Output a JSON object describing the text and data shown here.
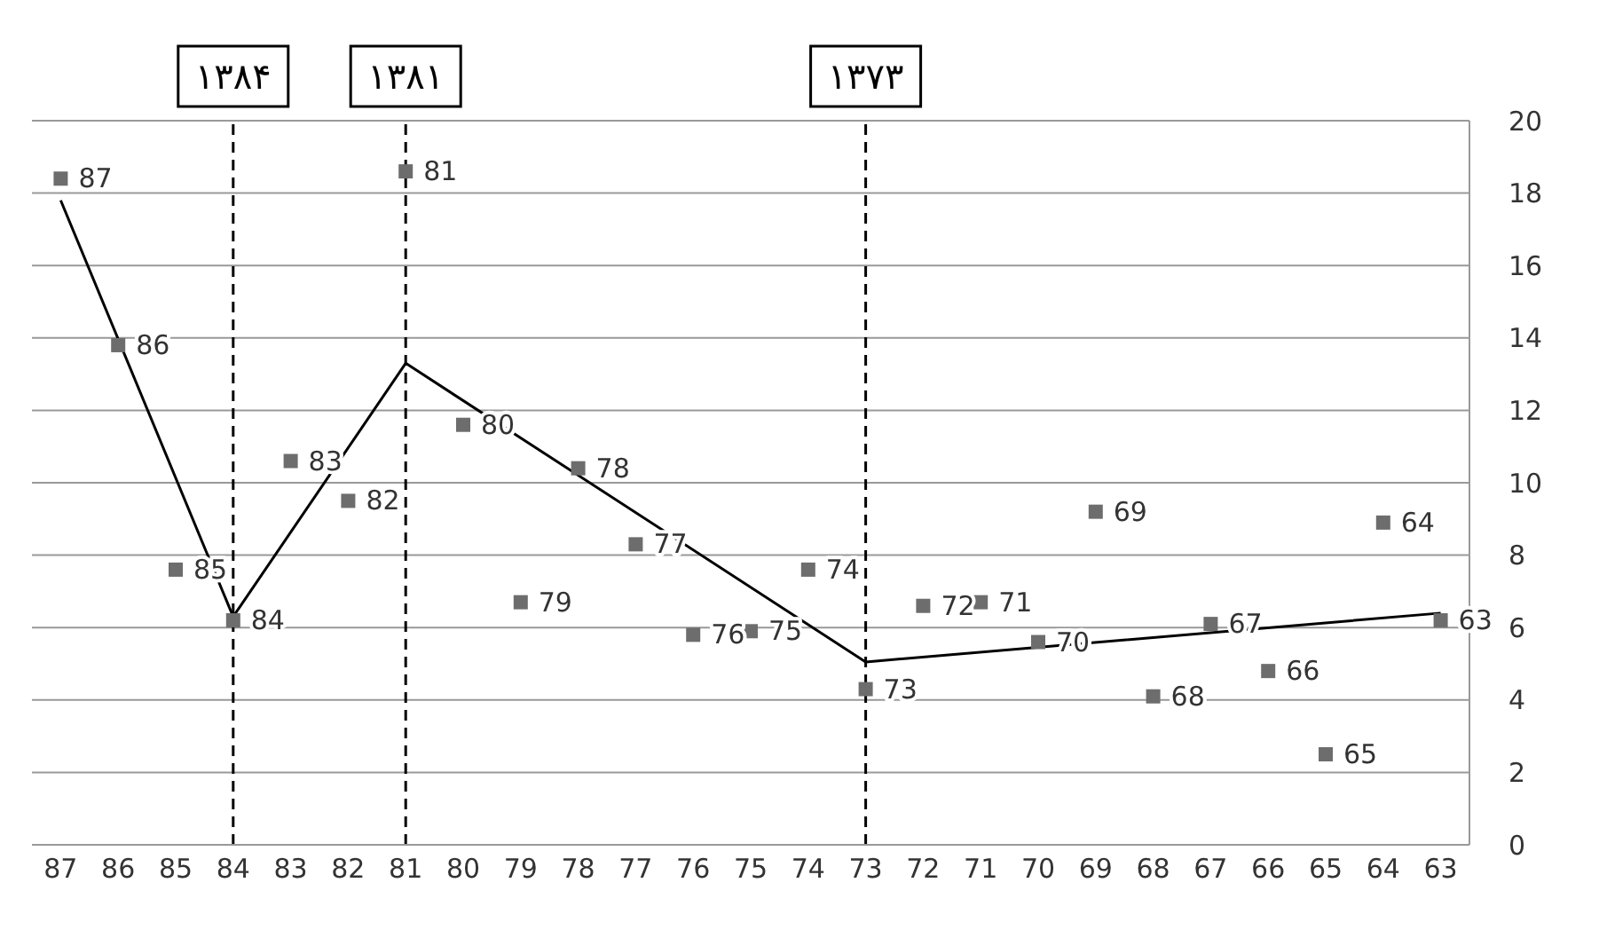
{
  "chart_data": {
    "type": "scatter",
    "categories": [
      "87",
      "86",
      "85",
      "84",
      "83",
      "82",
      "81",
      "80",
      "79",
      "78",
      "77",
      "76",
      "75",
      "74",
      "73",
      "72",
      "71",
      "70",
      "69",
      "68",
      "67",
      "66",
      "65",
      "64",
      "63"
    ],
    "series": [
      {
        "type": "scatter",
        "color": "#6d6d6d",
        "marker": "square",
        "x": [
          "87",
          "86",
          "85",
          "84",
          "83",
          "82",
          "81",
          "80",
          "79",
          "78",
          "77",
          "76",
          "75",
          "74",
          "73",
          "72",
          "71",
          "70",
          "69",
          "68",
          "67",
          "66",
          "65",
          "64",
          "63"
        ],
        "values": [
          18.4,
          13.8,
          7.6,
          6.2,
          10.6,
          9.5,
          18.6,
          11.6,
          6.7,
          10.4,
          8.3,
          5.8,
          5.9,
          7.6,
          4.3,
          6.6,
          6.7,
          5.6,
          9.2,
          4.1,
          6.1,
          4.8,
          2.5,
          8.9,
          6.2
        ]
      },
      {
        "type": "line",
        "color": "#000000",
        "marker": "none",
        "line_style": "solid",
        "x": [
          "87",
          "84",
          "81",
          "73",
          "63"
        ],
        "values": [
          17.8,
          6.3,
          13.3,
          5.05,
          6.4
        ]
      }
    ],
    "annotations": [
      {
        "text": "87",
        "x": "87",
        "y": 18.4
      },
      {
        "text": "86",
        "x": "86",
        "y": 13.8
      },
      {
        "text": "85",
        "x": "85",
        "y": 7.6
      },
      {
        "text": "84",
        "x": "84",
        "y": 6.2
      },
      {
        "text": "83",
        "x": "83",
        "y": 10.6
      },
      {
        "text": "82",
        "x": "82",
        "y": 9.5
      },
      {
        "text": "81",
        "x": "81",
        "y": 18.6
      },
      {
        "text": "80",
        "x": "80",
        "y": 11.6
      },
      {
        "text": "79",
        "x": "79",
        "y": 6.7
      },
      {
        "text": "78",
        "x": "78",
        "y": 10.4
      },
      {
        "text": "77",
        "x": "77",
        "y": 8.3
      },
      {
        "text": "76",
        "x": "76",
        "y": 5.8
      },
      {
        "text": "75",
        "x": "75",
        "y": 5.9
      },
      {
        "text": "74",
        "x": "74",
        "y": 7.6
      },
      {
        "text": "73",
        "x": "73",
        "y": 4.3
      },
      {
        "text": "72",
        "x": "72",
        "y": 6.6
      },
      {
        "text": "71",
        "x": "71",
        "y": 6.7
      },
      {
        "text": "70",
        "x": "70",
        "y": 5.6
      },
      {
        "text": "69",
        "x": "69",
        "y": 9.2
      },
      {
        "text": "68",
        "x": "68",
        "y": 4.1
      },
      {
        "text": "67",
        "x": "67",
        "y": 6.1
      },
      {
        "text": "66",
        "x": "66",
        "y": 4.8
      },
      {
        "text": "65",
        "x": "65",
        "y": 2.5
      },
      {
        "text": "64",
        "x": "64",
        "y": 8.9
      },
      {
        "text": "63",
        "x": "63",
        "y": 6.2
      }
    ],
    "ylim": [
      0,
      20
    ],
    "yticks": [
      0,
      2,
      4,
      6,
      8,
      10,
      12,
      14,
      16,
      18,
      20
    ],
    "grid": "y",
    "legend": false,
    "ref_lines": [
      {
        "axis": "x",
        "value": "84",
        "label": "۱۳۸۴",
        "color": "#000000",
        "line_style": "dashed"
      },
      {
        "axis": "x",
        "value": "81",
        "label": "۱۳۸۱",
        "color": "#000000",
        "line_style": "dashed"
      },
      {
        "axis": "x",
        "value": "73",
        "label": "۱۳۷۳",
        "color": "#000000",
        "line_style": "dashed"
      }
    ]
  }
}
